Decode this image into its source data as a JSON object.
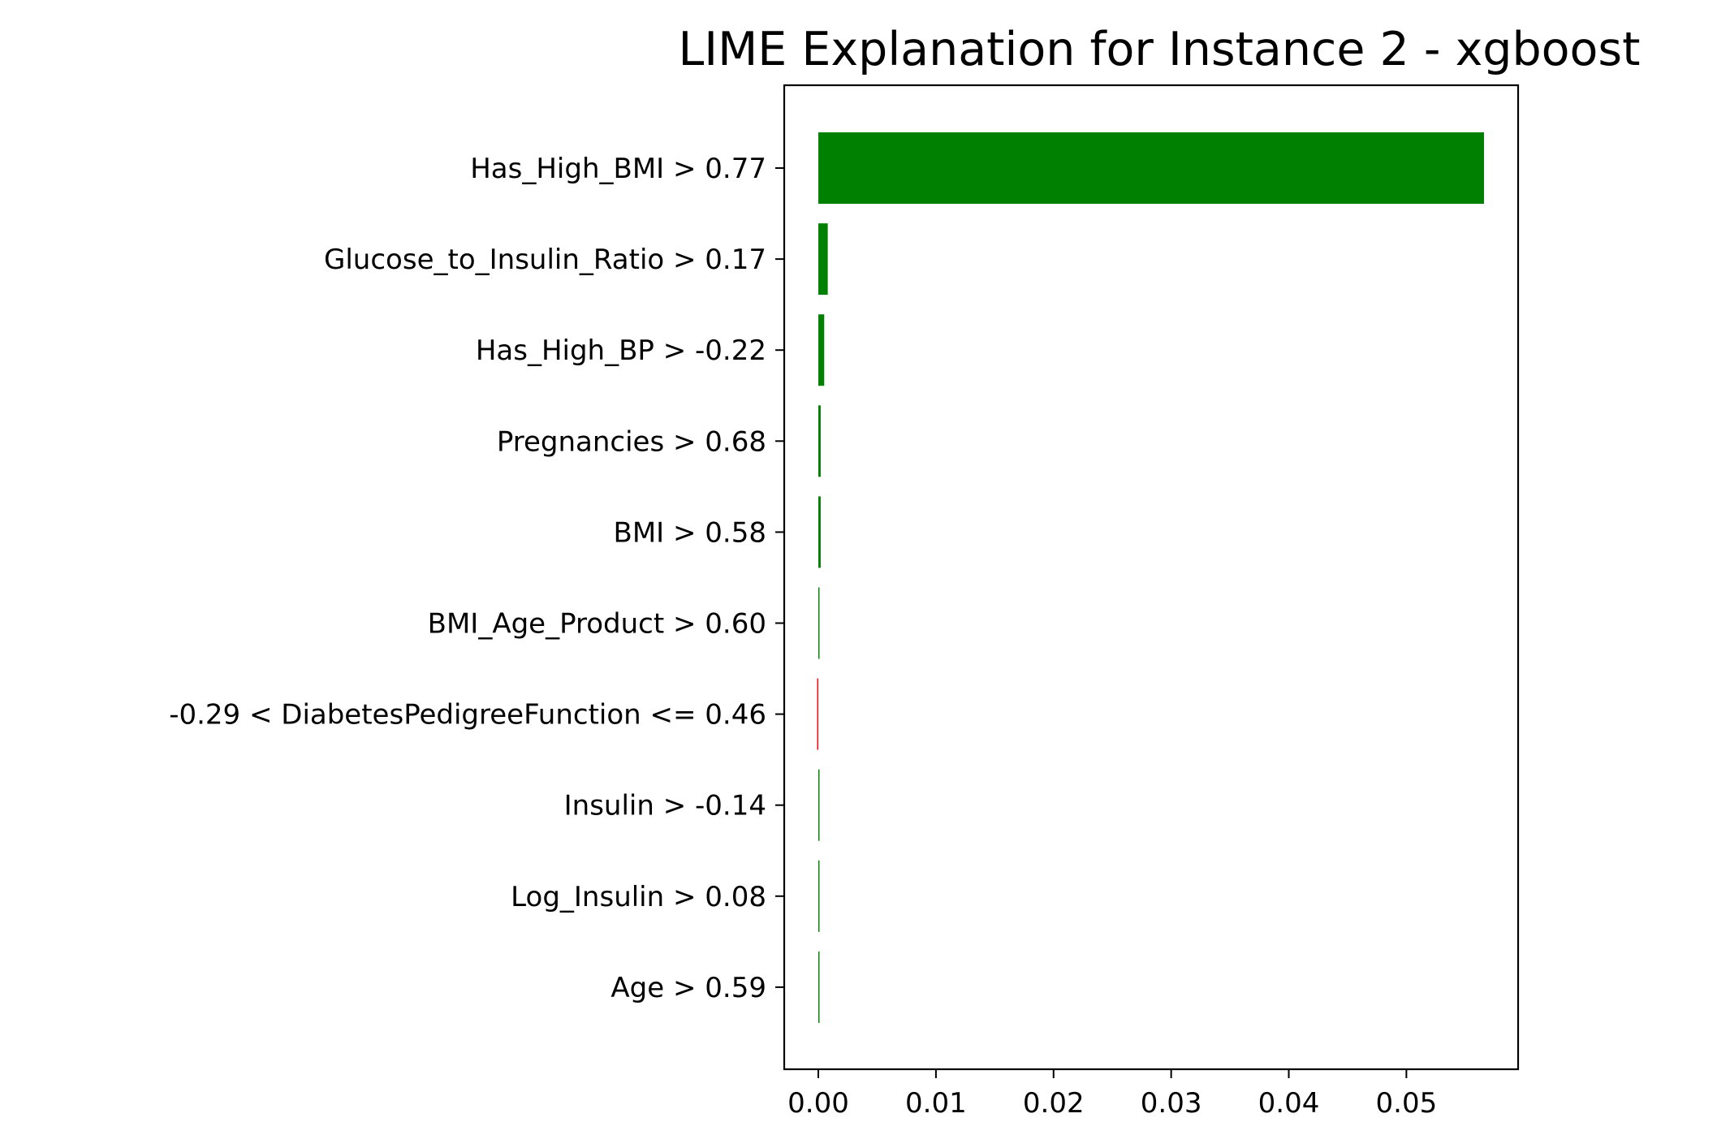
{
  "chart_data": {
    "type": "bar",
    "orientation": "horizontal",
    "title": "LIME Explanation for Instance 2 - xgboost",
    "xlabel": "",
    "ylabel": "",
    "xlim": [
      -0.0029,
      0.0595
    ],
    "grid": false,
    "positive_color": "#008000",
    "negative_color": "#ff0000",
    "categories": [
      "Has_High_BMI > 0.77",
      "Glucose_to_Insulin_Ratio > 0.17",
      "Has_High_BP > -0.22",
      "Pregnancies > 0.68",
      "BMI > 0.58",
      "BMI_Age_Product > 0.60",
      "-0.29 < DiabetesPedigreeFunction <= 0.46",
      "Insulin > -0.14",
      "Log_Insulin > 0.08",
      "Age > 0.59"
    ],
    "values": [
      0.0566,
      0.0008,
      0.0005,
      0.0002,
      0.0002,
      0.0001,
      -0.0001,
      0.0001,
      0.0001,
      0.0001
    ],
    "x_ticks": [
      "0.00",
      "0.01",
      "0.02",
      "0.03",
      "0.04",
      "0.05"
    ]
  }
}
